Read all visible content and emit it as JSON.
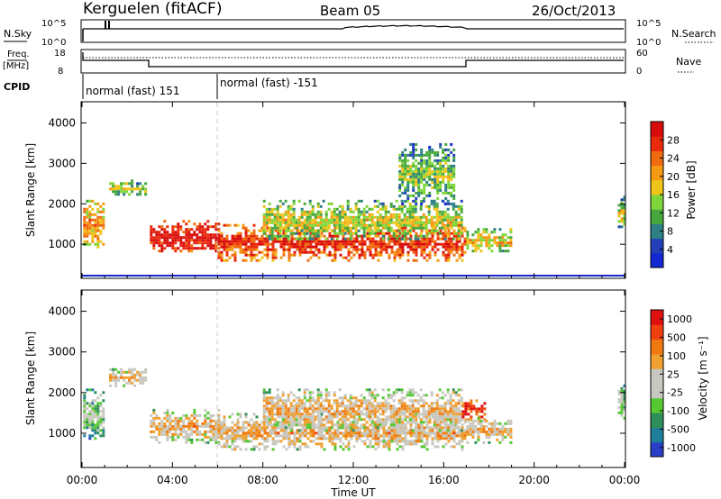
{
  "header": {
    "site": "Kerguelen (fitACF)",
    "beam": "Beam 05",
    "date": "26/Oct/2013"
  },
  "nsky_panel": {
    "left_label": "N.Sky",
    "right_label": "N.Search",
    "left_ticks": [
      "10^5",
      "10^0"
    ],
    "right_ticks": [
      "10^5",
      "10^0"
    ]
  },
  "freq_panel": {
    "left_label_1": "Freq.",
    "left_label_2": "[MHz]",
    "right_label": "Nave",
    "left_ticks": [
      "18",
      "8"
    ],
    "right_ticks": [
      "60",
      "0"
    ],
    "cpid_label": "CPID",
    "modes": [
      "normal (fast) 151",
      "normal (fast) -151"
    ]
  },
  "time_axis": {
    "title": "Time UT",
    "ticks": [
      "00:00",
      "04:00",
      "08:00",
      "12:00",
      "16:00",
      "20:00",
      "00:00"
    ]
  },
  "chart_data": [
    {
      "type": "heatmap",
      "name": "power",
      "ylabel": "Slant Range [km]",
      "yticks": [
        "1000",
        "2000",
        "3000",
        "4000"
      ],
      "ylim": [
        180,
        4500
      ],
      "xlim": [
        0,
        24
      ],
      "colorbar_label": "Power [dB]",
      "colorbar_ticks": [
        "4",
        "8",
        "12",
        "16",
        "20",
        "24",
        "28"
      ],
      "colors": [
        "#1428d2",
        "#2340b8",
        "#2e7f86",
        "#46a83c",
        "#7fd63a",
        "#f0c418",
        "#f59a12",
        "#f06a10",
        "#ea2a0c",
        "#d80c0c"
      ],
      "regions": [
        {
          "t": [
            0.05,
            0.9
          ],
          "r": [
            900,
            2100
          ],
          "level": 0.55
        },
        {
          "t": [
            1.2,
            2.8
          ],
          "r": [
            2200,
            2600
          ],
          "level": 0.35
        },
        {
          "t": [
            3.0,
            6.0
          ],
          "r": [
            800,
            1600
          ],
          "level": 0.85
        },
        {
          "t": [
            6.0,
            17.0
          ],
          "r": [
            600,
            1500
          ],
          "level": 0.75
        },
        {
          "t": [
            8.0,
            16.8
          ],
          "r": [
            1100,
            2100
          ],
          "level": 0.4
        },
        {
          "t": [
            14.0,
            16.5
          ],
          "r": [
            2000,
            3500
          ],
          "level": 0.3
        },
        {
          "t": [
            17.0,
            19.0
          ],
          "r": [
            800,
            1400
          ],
          "level": 0.45
        },
        {
          "t": [
            23.7,
            24.0
          ],
          "r": [
            1400,
            2200
          ],
          "level": 0.4
        }
      ]
    },
    {
      "type": "heatmap",
      "name": "velocity",
      "ylabel": "Slant Range [km]",
      "yticks": [
        "1000",
        "2000",
        "3000",
        "4000"
      ],
      "ylim": [
        180,
        4500
      ],
      "xlim": [
        0,
        24
      ],
      "colorbar_label": "Velocity [m s⁻¹]",
      "colorbar_ticks": [
        "1000",
        "500",
        "100",
        "25",
        "-25",
        "-100",
        "-500",
        "-1000"
      ],
      "colors": [
        "#2a3fc8",
        "#1f7f9a",
        "#2f8f5a",
        "#56c832",
        "#c8c8c0",
        "#c8c8c0",
        "#f0a030",
        "#f07a10",
        "#f04010",
        "#e01010"
      ],
      "regions": [
        {
          "t": [
            0.05,
            0.9
          ],
          "r": [
            900,
            2100
          ],
          "level": 0.3
        },
        {
          "t": [
            1.2,
            2.8
          ],
          "r": [
            2200,
            2600
          ],
          "level": 0.5
        },
        {
          "t": [
            3.0,
            6.0
          ],
          "r": [
            800,
            1600
          ],
          "level": 0.5
        },
        {
          "t": [
            6.0,
            17.0
          ],
          "r": [
            600,
            1500
          ],
          "level": 0.5
        },
        {
          "t": [
            8.0,
            16.8
          ],
          "r": [
            1100,
            2100
          ],
          "level": 0.5
        },
        {
          "t": [
            16.8,
            17.8
          ],
          "r": [
            1300,
            1900
          ],
          "level": 0.8
        },
        {
          "t": [
            17.0,
            19.0
          ],
          "r": [
            800,
            1400
          ],
          "level": 0.5
        },
        {
          "t": [
            23.7,
            24.0
          ],
          "r": [
            1400,
            2200
          ],
          "level": 0.3
        }
      ]
    }
  ]
}
